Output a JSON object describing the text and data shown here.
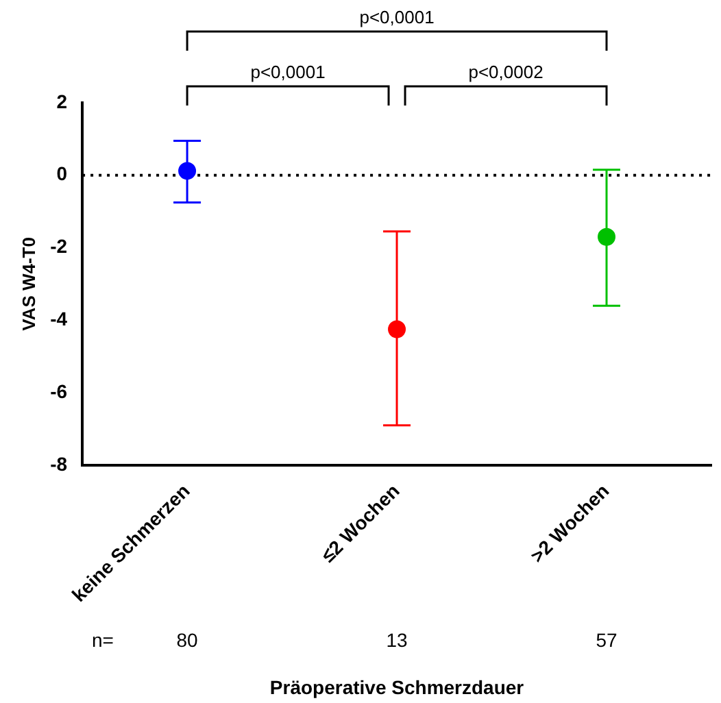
{
  "chart_data": {
    "type": "scatter",
    "ylabel": "VAS W4-T0",
    "xlabel": "Präoperative Schmerzdauer",
    "categories": [
      "keine Schmerzen",
      "≤2 Wochen",
      ">2 Wochen"
    ],
    "series": [
      {
        "colors": [
          "#0000ff",
          "#ff0000",
          "#00c000"
        ],
        "values": [
          0.12,
          -4.25,
          -1.7
        ],
        "errors": [
          [
            -0.75,
            0.95
          ],
          [
            -6.9,
            -1.55
          ],
          [
            -3.6,
            0.15
          ]
        ]
      }
    ],
    "ylim": [
      -8,
      2
    ],
    "yticks": [
      -8,
      -6,
      -4,
      -2,
      0,
      2
    ],
    "grid": false,
    "legend": false,
    "marker": "circle",
    "ref_lines": [
      {
        "axis": "y",
        "value": 0,
        "line_style": "dotted",
        "color": "#000000"
      }
    ],
    "annotations": [
      "p<0,0001",
      "p<0,0001",
      "p<0,0002",
      "n=",
      "80",
      "13",
      "57"
    ]
  }
}
